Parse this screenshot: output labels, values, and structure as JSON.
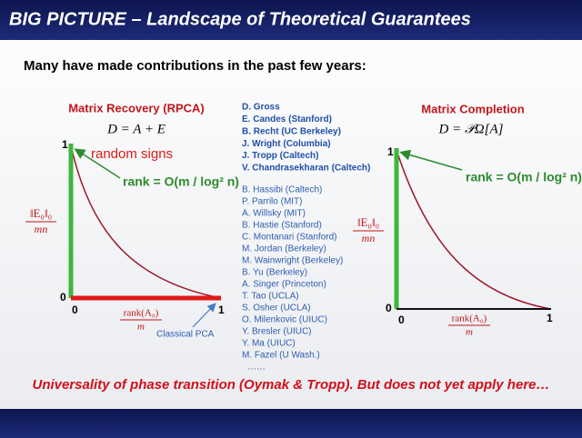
{
  "header": {
    "title": "BIG PICTURE – Landscape of Theoretical Guarantees"
  },
  "subtitle": "Many have made contributions in the past few years:",
  "left_panel": {
    "title": "Matrix Recovery (RPCA)",
    "formula": "D = A + E",
    "annotation": "random signs",
    "rank_label": "rank = O(m / log² n)",
    "y_axis_label": {
      "numerator": "‖E₀‖₀",
      "denominator": "mn"
    },
    "x_axis_label": {
      "numerator": "rank(A₀)",
      "denominator": "m"
    },
    "y_ticks": [
      "1",
      "0"
    ],
    "x_ticks": [
      "0",
      "1"
    ],
    "note": "Classical PCA"
  },
  "contributors": {
    "highlighted": [
      "D. Gross",
      "E. Candes (Stanford)",
      "B. Recht (UC Berkeley)",
      "J. Wright (Columbia)",
      "J. Tropp (Caltech)",
      "V. Chandrasekharan  (Caltech)"
    ],
    "others": [
      "B. Hassibi (Caltech)",
      "P. Parrilo (MIT)",
      "A.  Willsky (MIT)",
      "B.  Hastie (Stanford)",
      "C.  Montanari (Stanford)",
      "M. Jordan (Berkeley)",
      "M. Wainwright (Berkeley)",
      "B. Yu (Berkeley)",
      "A.  Singer (Princeton)",
      "T. Tao (UCLA)",
      "S. Osher (UCLA)",
      "O. Milenkovic (UIUC)",
      "Y. Bresler (UIUC)",
      "Y. Ma (UIUC)",
      "M. Fazel (U Wash.)"
    ],
    "more": "……"
  },
  "right_panel": {
    "title": "Matrix Completion",
    "formula": "D = 𝒫Ω[A]",
    "rank_label": "rank = O(m / log² n)",
    "y_axis_label": {
      "numerator": "‖E₀‖₀",
      "denominator": "mn"
    },
    "x_axis_label": {
      "numerator": "rank(A₀)",
      "denominator": "m"
    },
    "y_ticks": [
      "1",
      "0"
    ],
    "x_ticks": [
      "0",
      "1"
    ]
  },
  "conclusion": "Universality of phase transition (Oymak & Tropp). But does not yet apply here…"
}
